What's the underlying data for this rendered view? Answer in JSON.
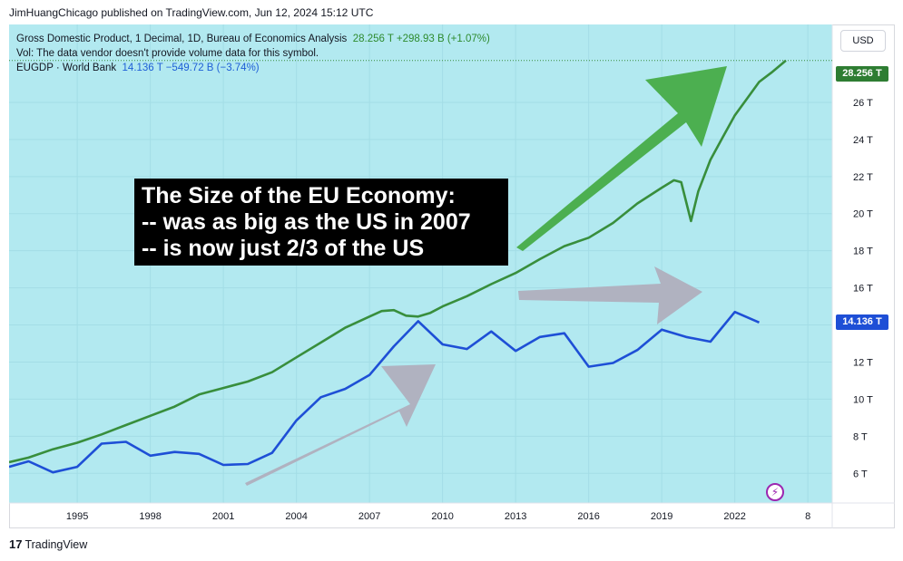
{
  "header": {
    "published": "JimHuangChicago published on TradingView.com, Jun 12, 2024 15:12 UTC"
  },
  "legend": {
    "line1_label": "Gross Domestic Product, 1 Decimal, 1D, Bureau of Economics Analysis",
    "line1_value": "28.256 T  +298.93 B (+1.07%)",
    "line2": "Vol: The data vendor doesn't provide volume data for this symbol.",
    "line3_label": "EUGDP · World Bank",
    "line3_value": "14.136 T  −549.72 B (−3.74%)"
  },
  "currency_button": "USD",
  "price_tags": {
    "us": "28.256 T",
    "eu": "14.136 T"
  },
  "annotation": {
    "line1": "The Size of the EU Economy:",
    "line2": "-- was as big as the US in 2007",
    "line3": "-- is now just 2/3 of the US"
  },
  "footer": {
    "brand": "TradingView",
    "logo": "17"
  },
  "colors": {
    "background": "#b2e9f0",
    "us_line": "#388e3c",
    "eu_line": "#1e4fd6",
    "green_arrow": "#4caf50",
    "gray_arrow": "#b0b2c0"
  },
  "chart_data": {
    "type": "line",
    "x_unit": "year",
    "xlim": [
      1992.2,
      2026
    ],
    "ylim": [
      4.4,
      30.2
    ],
    "x_ticks": [
      "1995",
      "1998",
      "2001",
      "2004",
      "2007",
      "2010",
      "2013",
      "2016",
      "2019",
      "2022",
      "8"
    ],
    "y_ticks": [
      "6 T",
      "8 T",
      "10 T",
      "12 T",
      "14 T",
      "16 T",
      "18 T",
      "20 T",
      "22 T",
      "24 T",
      "26 T"
    ],
    "series": [
      {
        "name": "Gross Domestic Product",
        "color": "#388e3c",
        "points": [
          [
            1992.2,
            6.6
          ],
          [
            1993,
            6.85
          ],
          [
            1994,
            7.3
          ],
          [
            1995,
            7.65
          ],
          [
            1996,
            8.1
          ],
          [
            1997,
            8.6
          ],
          [
            1998,
            9.1
          ],
          [
            1999,
            9.6
          ],
          [
            2000,
            10.25
          ],
          [
            2001,
            10.6
          ],
          [
            2002,
            10.95
          ],
          [
            2003,
            11.45
          ],
          [
            2004,
            12.25
          ],
          [
            2005,
            13.05
          ],
          [
            2006,
            13.85
          ],
          [
            2007,
            14.45
          ],
          [
            2007.5,
            14.75
          ],
          [
            2008,
            14.8
          ],
          [
            2008.5,
            14.5
          ],
          [
            2009,
            14.45
          ],
          [
            2009.5,
            14.65
          ],
          [
            2010,
            15.0
          ],
          [
            2011,
            15.55
          ],
          [
            2012,
            16.2
          ],
          [
            2013,
            16.8
          ],
          [
            2014,
            17.55
          ],
          [
            2015,
            18.25
          ],
          [
            2016,
            18.7
          ],
          [
            2017,
            19.5
          ],
          [
            2018,
            20.55
          ],
          [
            2019,
            21.4
          ],
          [
            2019.5,
            21.8
          ],
          [
            2019.8,
            21.7
          ],
          [
            2020.2,
            19.6
          ],
          [
            2020.5,
            21.2
          ],
          [
            2021,
            22.9
          ],
          [
            2021.5,
            24.1
          ],
          [
            2022,
            25.3
          ],
          [
            2022.5,
            26.2
          ],
          [
            2023,
            27.1
          ],
          [
            2023.5,
            27.6
          ],
          [
            2024.1,
            28.256
          ]
        ]
      },
      {
        "name": "EUGDP",
        "color": "#1e4fd6",
        "points": [
          [
            1992.2,
            6.35
          ],
          [
            1993,
            6.65
          ],
          [
            1994,
            6.05
          ],
          [
            1995,
            6.35
          ],
          [
            1996,
            7.6
          ],
          [
            1997,
            7.7
          ],
          [
            1998,
            6.95
          ],
          [
            1999,
            7.15
          ],
          [
            2000,
            7.05
          ],
          [
            2001,
            6.45
          ],
          [
            2002,
            6.5
          ],
          [
            2003,
            7.1
          ],
          [
            2004,
            8.85
          ],
          [
            2005,
            10.1
          ],
          [
            2006,
            10.55
          ],
          [
            2007,
            11.3
          ],
          [
            2008,
            12.85
          ],
          [
            2009,
            14.2
          ],
          [
            2010,
            12.95
          ],
          [
            2011,
            12.7
          ],
          [
            2012,
            13.65
          ],
          [
            2013,
            12.6
          ],
          [
            2014,
            13.35
          ],
          [
            2015,
            13.55
          ],
          [
            2016,
            11.75
          ],
          [
            2017,
            11.95
          ],
          [
            2018,
            12.65
          ],
          [
            2019,
            13.75
          ],
          [
            2020,
            13.35
          ],
          [
            2021,
            13.1
          ],
          [
            2022,
            14.7
          ],
          [
            2023,
            14.136
          ]
        ]
      }
    ]
  }
}
